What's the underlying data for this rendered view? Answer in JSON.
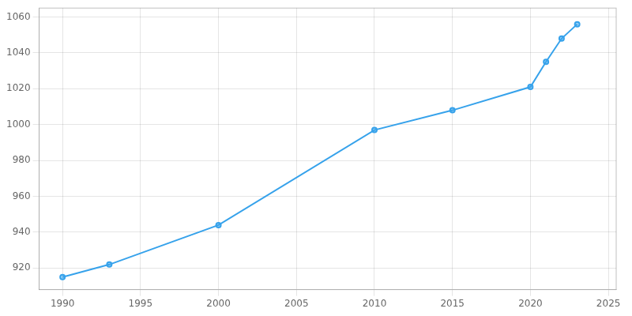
{
  "chart_data": {
    "type": "line",
    "x": [
      1990,
      1993,
      2000,
      2010,
      2015,
      2020,
      2021,
      2022,
      2023
    ],
    "values": [
      915,
      922,
      944,
      997,
      1008,
      1021,
      1035,
      1048,
      1056
    ],
    "xlim": [
      1988.5,
      2025.5
    ],
    "ylim": [
      908,
      1065
    ],
    "xticks": [
      1990,
      1995,
      2000,
      2005,
      2010,
      2015,
      2020,
      2025
    ],
    "yticks": [
      920,
      940,
      960,
      980,
      1000,
      1020,
      1040,
      1060
    ],
    "grid": true,
    "marker": "circle"
  }
}
